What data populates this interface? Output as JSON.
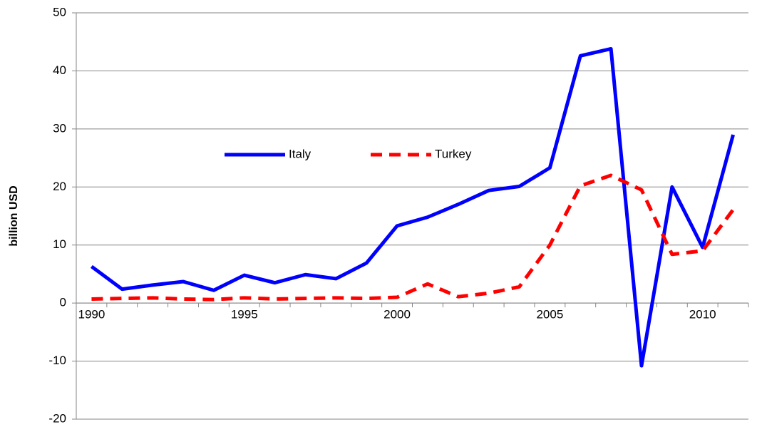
{
  "chart_data": {
    "type": "line",
    "y_label": "billion USD",
    "categories": [
      "1990",
      null,
      null,
      null,
      null,
      "1995",
      null,
      null,
      null,
      null,
      "2000",
      null,
      null,
      null,
      null,
      "2005",
      null,
      null,
      null,
      null,
      "2010",
      null
    ],
    "series": [
      {
        "name": "Italy",
        "color": "#0000ff",
        "dash": "solid",
        "values": [
          6.3,
          2.4,
          3.1,
          3.7,
          2.2,
          4.8,
          3.5,
          4.9,
          4.2,
          6.9,
          13.3,
          14.8,
          17.0,
          19.4,
          20.1,
          23.3,
          42.6,
          43.8,
          -10.8,
          20.0,
          9.6,
          29.0
        ]
      },
      {
        "name": "Turkey",
        "color": "#ff0000",
        "dash": "dashed",
        "values": [
          0.7,
          0.8,
          0.9,
          0.7,
          0.6,
          0.9,
          0.7,
          0.8,
          0.9,
          0.8,
          1.0,
          3.3,
          1.1,
          1.7,
          2.8,
          10.0,
          20.2,
          22.0,
          19.5,
          8.4,
          9.0,
          16.1
        ]
      }
    ],
    "ylim": [
      -20,
      50
    ],
    "yticks": [
      -20,
      -10,
      0,
      10,
      20,
      30,
      40,
      50
    ],
    "grid": true,
    "legend": "top"
  }
}
